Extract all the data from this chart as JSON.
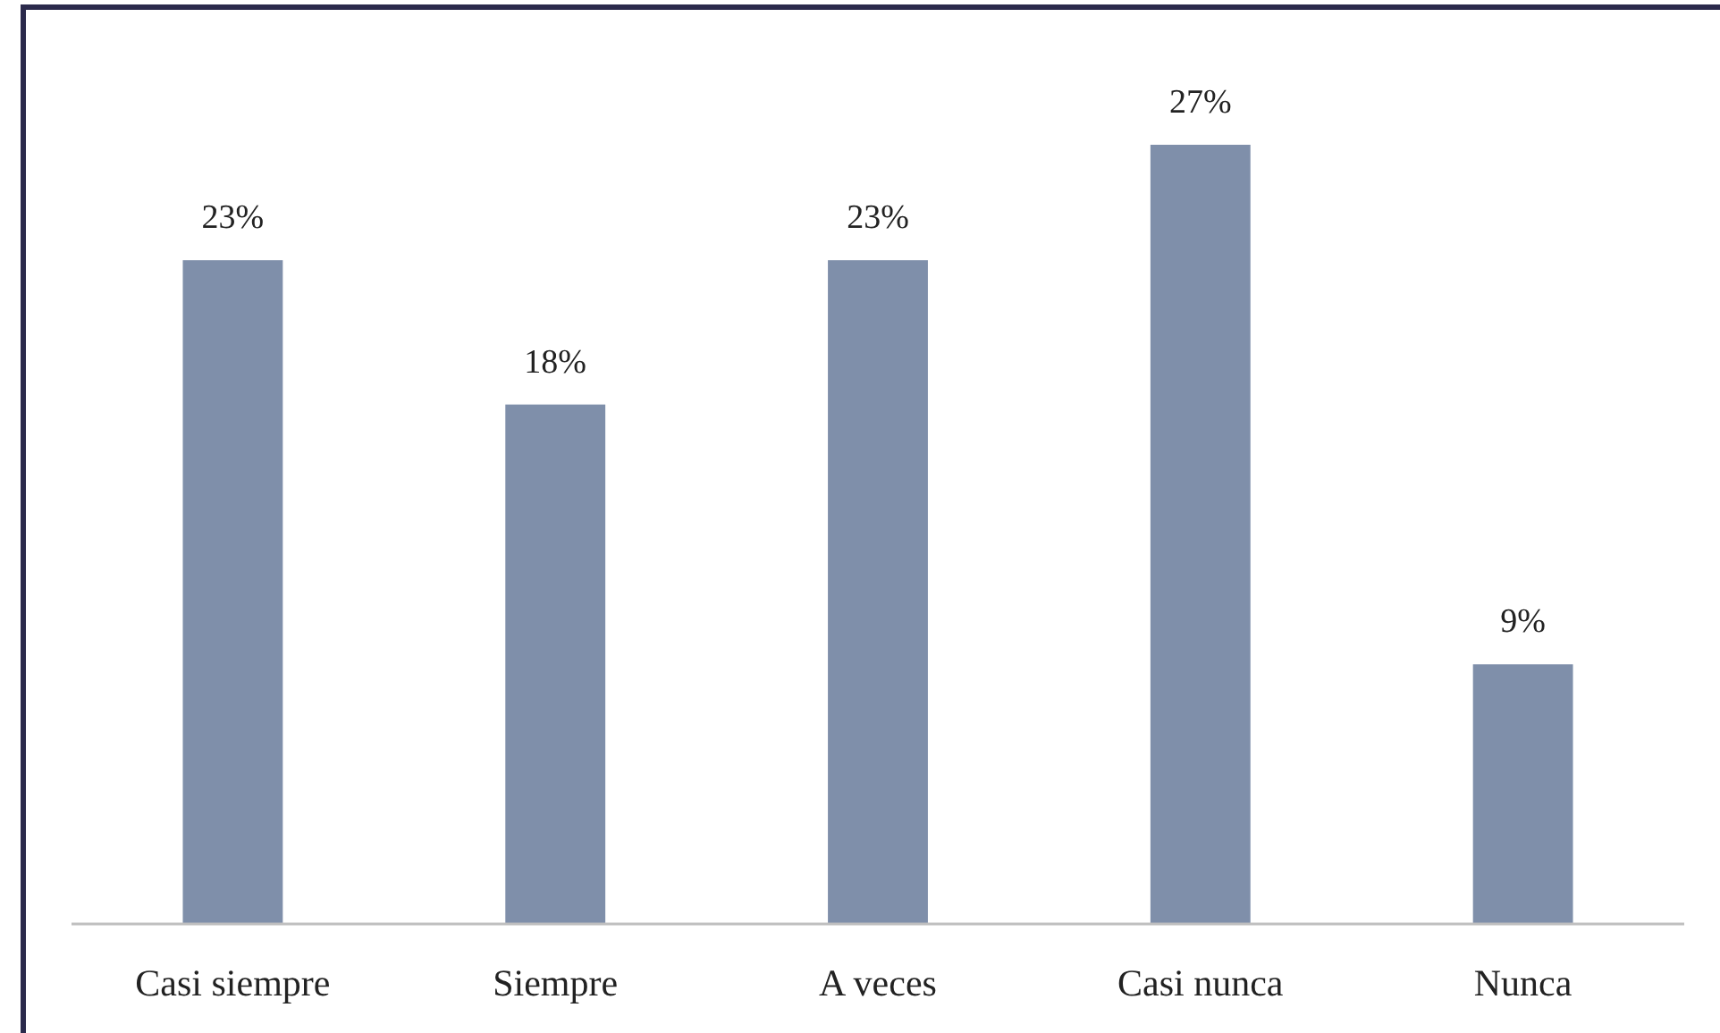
{
  "chart_data": {
    "type": "bar",
    "categories": [
      "Casi siempre",
      "Siempre",
      "A veces",
      "Casi nunca",
      "Nunca"
    ],
    "values": [
      23,
      18,
      23,
      27,
      9
    ],
    "value_labels": [
      "23%",
      "18%",
      "23%",
      "27%",
      "9%"
    ],
    "color": "#7f8faa",
    "tick_labels": "x"
  }
}
